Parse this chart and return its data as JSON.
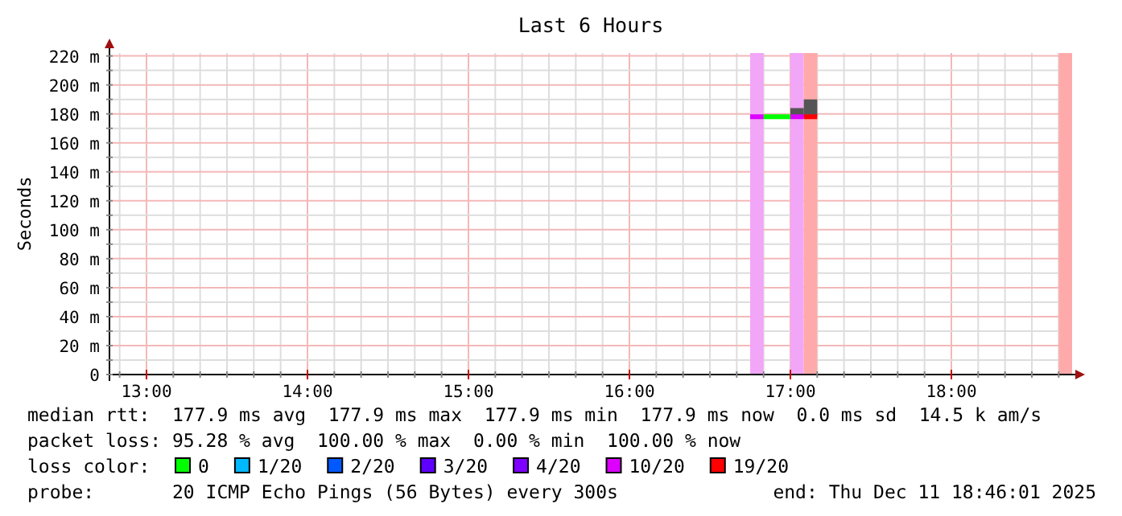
{
  "chart_data": {
    "type": "line",
    "title": "Last 6 Hours",
    "ylabel": "Seconds",
    "xlim": [
      12.77,
      18.75
    ],
    "ylim": [
      0,
      222
    ],
    "xticks": [
      {
        "value": 12.8333,
        "label": null
      },
      {
        "value": 13,
        "label": "13:00"
      },
      {
        "value": 13.1667,
        "label": null
      },
      {
        "value": 13.3333,
        "label": null
      },
      {
        "value": 13.5,
        "label": null
      },
      {
        "value": 13.6667,
        "label": null
      },
      {
        "value": 13.8333,
        "label": null
      },
      {
        "value": 14,
        "label": "14:00"
      },
      {
        "value": 14.1667,
        "label": null
      },
      {
        "value": 14.3333,
        "label": null
      },
      {
        "value": 14.5,
        "label": null
      },
      {
        "value": 14.6667,
        "label": null
      },
      {
        "value": 14.8333,
        "label": null
      },
      {
        "value": 15,
        "label": "15:00"
      },
      {
        "value": 15.1667,
        "label": null
      },
      {
        "value": 15.3333,
        "label": null
      },
      {
        "value": 15.5,
        "label": null
      },
      {
        "value": 15.6667,
        "label": null
      },
      {
        "value": 15.8333,
        "label": null
      },
      {
        "value": 16,
        "label": "16:00"
      },
      {
        "value": 16.1667,
        "label": null
      },
      {
        "value": 16.3333,
        "label": null
      },
      {
        "value": 16.5,
        "label": null
      },
      {
        "value": 16.6667,
        "label": null
      },
      {
        "value": 16.8333,
        "label": null
      },
      {
        "value": 17,
        "label": "17:00"
      },
      {
        "value": 17.1667,
        "label": null
      },
      {
        "value": 17.3333,
        "label": null
      },
      {
        "value": 17.5,
        "label": null
      },
      {
        "value": 17.6667,
        "label": null
      },
      {
        "value": 17.8333,
        "label": null
      },
      {
        "value": 18,
        "label": "18:00"
      },
      {
        "value": 18.1667,
        "label": null
      },
      {
        "value": 18.3333,
        "label": null
      },
      {
        "value": 18.5,
        "label": null
      },
      {
        "value": 18.6667,
        "label": null
      }
    ],
    "yticks": [
      0,
      {
        "value": 10,
        "label": null
      },
      {
        "value": 20,
        "label": "20 m"
      },
      {
        "value": 30,
        "label": null
      },
      {
        "value": 40,
        "label": "40 m"
      },
      {
        "value": 50,
        "label": null
      },
      {
        "value": 60,
        "label": "60 m"
      },
      {
        "value": 70,
        "label": null
      },
      {
        "value": 80,
        "label": "80 m"
      },
      {
        "value": 90,
        "label": null
      },
      {
        "value": 100,
        "label": "100 m"
      },
      {
        "value": 110,
        "label": null
      },
      {
        "value": 120,
        "label": "120 m"
      },
      {
        "value": 130,
        "label": null
      },
      {
        "value": 140,
        "label": "140 m"
      },
      {
        "value": 150,
        "label": null
      },
      {
        "value": 160,
        "label": "160 m"
      },
      {
        "value": 170,
        "label": null
      },
      {
        "value": 180,
        "label": "180 m"
      },
      {
        "value": 190,
        "label": null
      },
      {
        "value": 200,
        "label": "200 m"
      },
      {
        "value": 210,
        "label": null
      },
      {
        "value": 220,
        "label": "220 m"
      }
    ],
    "grid": true,
    "legend": "bottom",
    "legend_title": "loss color:",
    "bands": [
      {
        "axis": "x",
        "from": 16.75,
        "to": 16.8333,
        "color": "#f2a6f8"
      },
      {
        "axis": "x",
        "from": 17.0,
        "to": 17.0833,
        "color": "#f2a6f8"
      },
      {
        "axis": "x",
        "from": 17.0833,
        "to": 17.1667,
        "color": "#ffaaaa"
      },
      {
        "axis": "x",
        "from": 18.6667,
        "to": 18.75,
        "color": "#ffaaaa"
      }
    ],
    "series": [
      {
        "type": "bar",
        "color": "#555555",
        "x": [
          17.0417,
          17.125
        ],
        "base": [
          178,
          178
        ],
        "values": [
          6,
          12
        ]
      },
      {
        "name": "0",
        "color": "#00ff00",
        "x": [
          16.8333,
          17.0
        ],
        "values": [
          178,
          178
        ]
      },
      {
        "name": "1/20",
        "color": "#00b8ff"
      },
      {
        "name": "2/20",
        "color": "#0059ff"
      },
      {
        "name": "3/20",
        "color": "#5e00ff"
      },
      {
        "name": "4/20",
        "color": "#7e00ff"
      },
      {
        "name": "10/20",
        "color": "#dd00ff",
        "x": [
          16.75,
          16.8333,
          16.9,
          17.0,
          17.0833
        ],
        "values": [
          178,
          178,
          null,
          178,
          178
        ]
      },
      {
        "name": "19/20",
        "color": "#ff0000",
        "x": [
          17.0833,
          17.1667
        ],
        "values": [
          178,
          178
        ]
      }
    ],
    "annotations": [
      "median rtt:  177.9 ms avg  177.9 ms max  177.9 ms min  177.9 ms now  0.0 ms sd  14.5 k am/s",
      "packet loss: 95.28 % avg  100.00 % max  0.00 % min  100.00 % now",
      "probe:       20 ICMP Echo Pings (56 Bytes) every 300s",
      "end: Thu Dec 11 18:46:01 2025"
    ]
  }
}
